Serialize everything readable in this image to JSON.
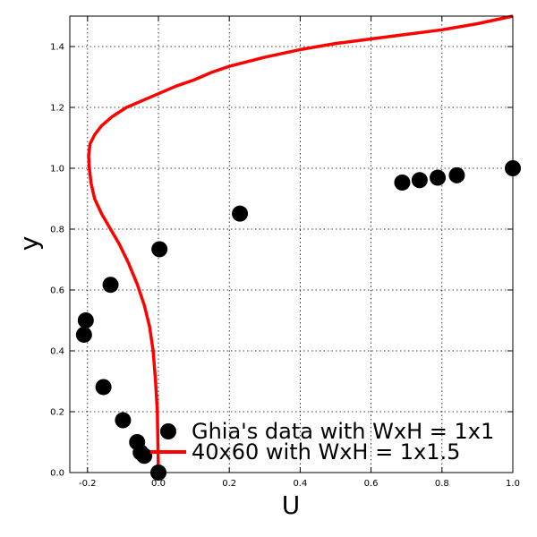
{
  "chart_data": {
    "type": "scatter",
    "title": "",
    "xlabel": "U",
    "ylabel": "y",
    "xlim": [
      -0.25,
      1.0
    ],
    "ylim": [
      0.0,
      1.5
    ],
    "grid": true,
    "legend_position": "bottom-right",
    "x_ticks": [
      "-0.2",
      "0.0",
      "0.2",
      "0.4",
      "0.6",
      "0.8",
      "1.0"
    ],
    "y_ticks": [
      "0.0",
      "0.2",
      "0.4",
      "0.6",
      "0.8",
      "1.0",
      "1.2",
      "1.4"
    ],
    "series": [
      {
        "name": "Ghia's data with WxH = 1x1",
        "kind": "scatter",
        "color": "#000000",
        "x": [
          0.0,
          -0.04,
          -0.05,
          -0.06,
          -0.1,
          -0.155,
          -0.21,
          -0.205,
          -0.135,
          0.003,
          0.23,
          0.688,
          0.737,
          0.788,
          0.842,
          1.0
        ],
        "y": [
          0.0,
          0.055,
          0.066,
          0.1,
          0.172,
          0.281,
          0.453,
          0.5,
          0.617,
          0.734,
          0.851,
          0.953,
          0.961,
          0.969,
          0.977,
          1.0
        ]
      },
      {
        "name": "40x60 with WxH = 1x1.5",
        "kind": "line",
        "color": "#ff0000",
        "x": [
          0.0,
          -0.003,
          -0.008,
          -0.015,
          -0.025,
          -0.04,
          -0.06,
          -0.085,
          -0.11,
          -0.135,
          -0.16,
          -0.18,
          -0.19,
          -0.195,
          -0.197,
          -0.193,
          -0.18,
          -0.16,
          -0.13,
          -0.09,
          -0.05,
          0.0,
          0.05,
          0.1,
          0.15,
          0.2,
          0.3,
          0.4,
          0.5,
          0.6,
          0.7,
          0.8,
          0.9,
          1.0
        ],
        "y": [
          0.0,
          0.2,
          0.3,
          0.4,
          0.48,
          0.55,
          0.62,
          0.69,
          0.75,
          0.8,
          0.85,
          0.9,
          0.95,
          1.0,
          1.04,
          1.08,
          1.11,
          1.14,
          1.17,
          1.2,
          1.22,
          1.245,
          1.27,
          1.29,
          1.315,
          1.335,
          1.365,
          1.39,
          1.41,
          1.425,
          1.44,
          1.455,
          1.475,
          1.5
        ]
      }
    ]
  }
}
